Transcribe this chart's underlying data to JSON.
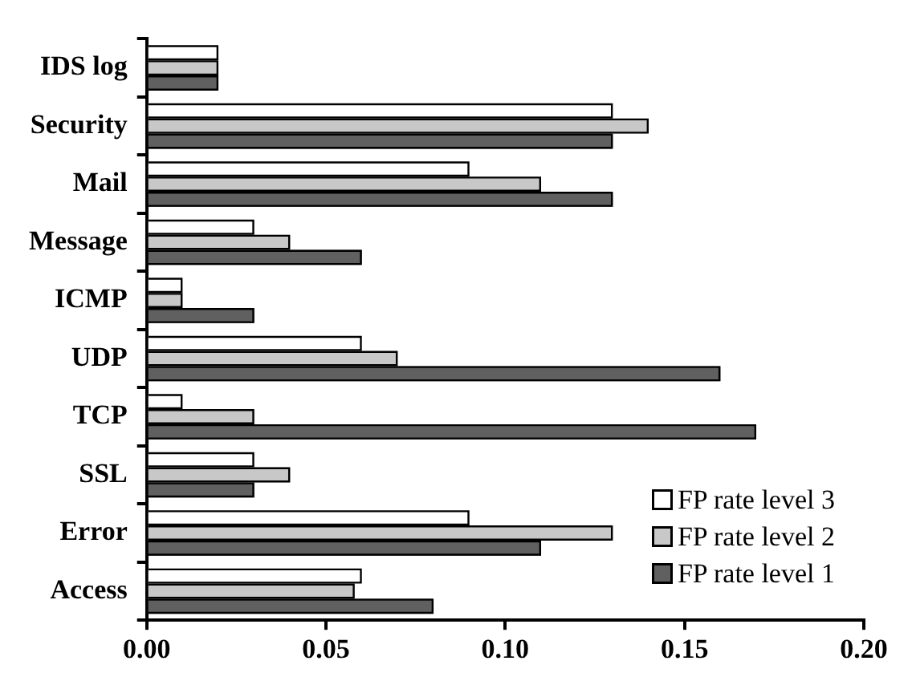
{
  "chart_data": {
    "type": "bar",
    "orientation": "horizontal",
    "categories": [
      "IDS log",
      "Security",
      "Mail",
      "Message",
      "ICMP",
      "UDP",
      "TCP",
      "SSL",
      "Error",
      "Access"
    ],
    "series": [
      {
        "name": "FP rate level 3",
        "color": "#ffffff",
        "values": [
          0.02,
          0.13,
          0.09,
          0.03,
          0.01,
          0.06,
          0.01,
          0.03,
          0.09,
          0.06
        ]
      },
      {
        "name": "FP rate level 2",
        "color": "#c8c8c8",
        "values": [
          0.02,
          0.14,
          0.11,
          0.04,
          0.01,
          0.07,
          0.03,
          0.04,
          0.13,
          0.058
        ]
      },
      {
        "name": "FP rate level 1",
        "color": "#606060",
        "values": [
          0.02,
          0.13,
          0.13,
          0.06,
          0.03,
          0.16,
          0.17,
          0.03,
          0.11,
          0.08
        ]
      }
    ],
    "xlim": [
      0,
      0.2
    ],
    "xticks": [
      {
        "value": 0,
        "label": "0.00"
      },
      {
        "value": 0.05,
        "label": "0.05"
      },
      {
        "value": 0.1,
        "label": "0.10"
      },
      {
        "value": 0.15,
        "label": "0.15"
      },
      {
        "value": 0.2,
        "label": "0.20"
      }
    ],
    "grid": false,
    "legend": "bottom right"
  }
}
